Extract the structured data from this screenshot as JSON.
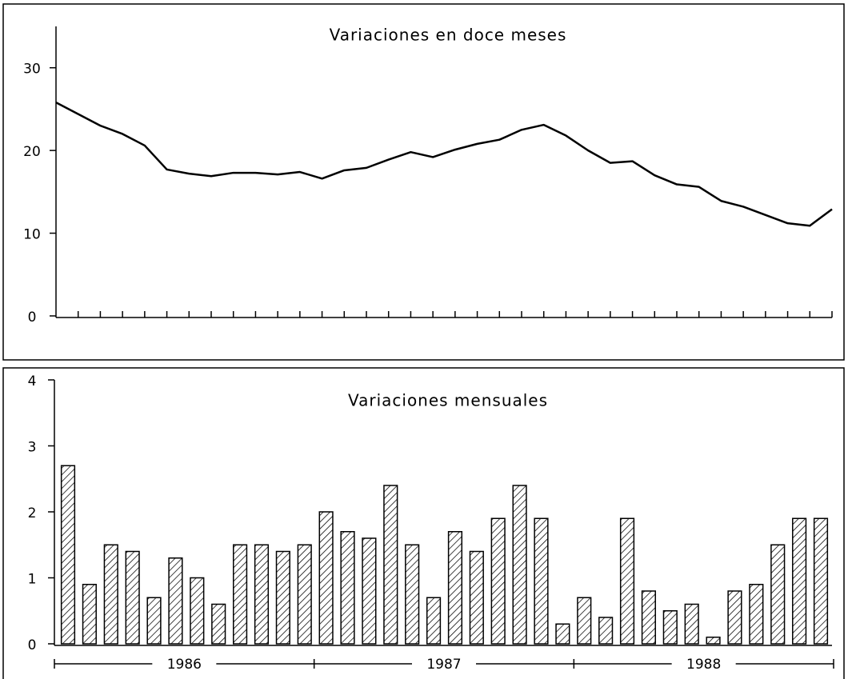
{
  "chart_data": [
    {
      "type": "line",
      "title": "Variaciones en doce meses",
      "categories": [
        null,
        null,
        null,
        null,
        null,
        null,
        null,
        null,
        null,
        null,
        null,
        null,
        null,
        null,
        null,
        null,
        null,
        null,
        null,
        null,
        null,
        null,
        null,
        null,
        null,
        null,
        null,
        null,
        null,
        null,
        null,
        null,
        null,
        null,
        null,
        null
      ],
      "values": [
        25.8,
        24.4,
        23.0,
        22.0,
        20.6,
        17.7,
        17.2,
        16.9,
        17.3,
        17.3,
        17.1,
        17.4,
        16.6,
        17.6,
        17.9,
        18.9,
        19.8,
        19.2,
        20.1,
        20.8,
        21.3,
        22.5,
        23.1,
        21.8,
        20.0,
        18.5,
        18.7,
        17.0,
        15.9,
        15.6,
        13.9,
        13.2,
        12.2,
        11.2,
        10.9,
        12.9
      ],
      "color": "#000000",
      "ylim": [
        0,
        35
      ],
      "yticks": [
        0,
        10,
        20,
        30
      ]
    },
    {
      "type": "bar",
      "title": "Variaciones mensuales",
      "categories": [
        null,
        null,
        null,
        null,
        null,
        null,
        null,
        null,
        null,
        null,
        null,
        null,
        null,
        null,
        null,
        null,
        null,
        null,
        null,
        null,
        null,
        null,
        null,
        null,
        null,
        null,
        null,
        null,
        null,
        null,
        null,
        null,
        null,
        null,
        null,
        null
      ],
      "values": [
        2.7,
        0.9,
        1.5,
        1.4,
        0.7,
        1.3,
        1.0,
        0.6,
        1.5,
        1.5,
        1.4,
        1.5,
        2.0,
        1.7,
        1.6,
        2.4,
        1.5,
        0.7,
        1.7,
        1.4,
        1.9,
        2.4,
        1.9,
        0.3,
        0.7,
        0.4,
        1.9,
        0.8,
        0.5,
        0.6,
        0.1,
        0.8,
        0.9,
        1.5,
        1.9,
        1.9
      ],
      "color": "#000000",
      "ylim": [
        0,
        4
      ],
      "yticks": [
        0,
        1,
        2,
        3,
        4
      ],
      "x_groups": [
        "1986",
        "1987",
        "1988"
      ]
    }
  ]
}
